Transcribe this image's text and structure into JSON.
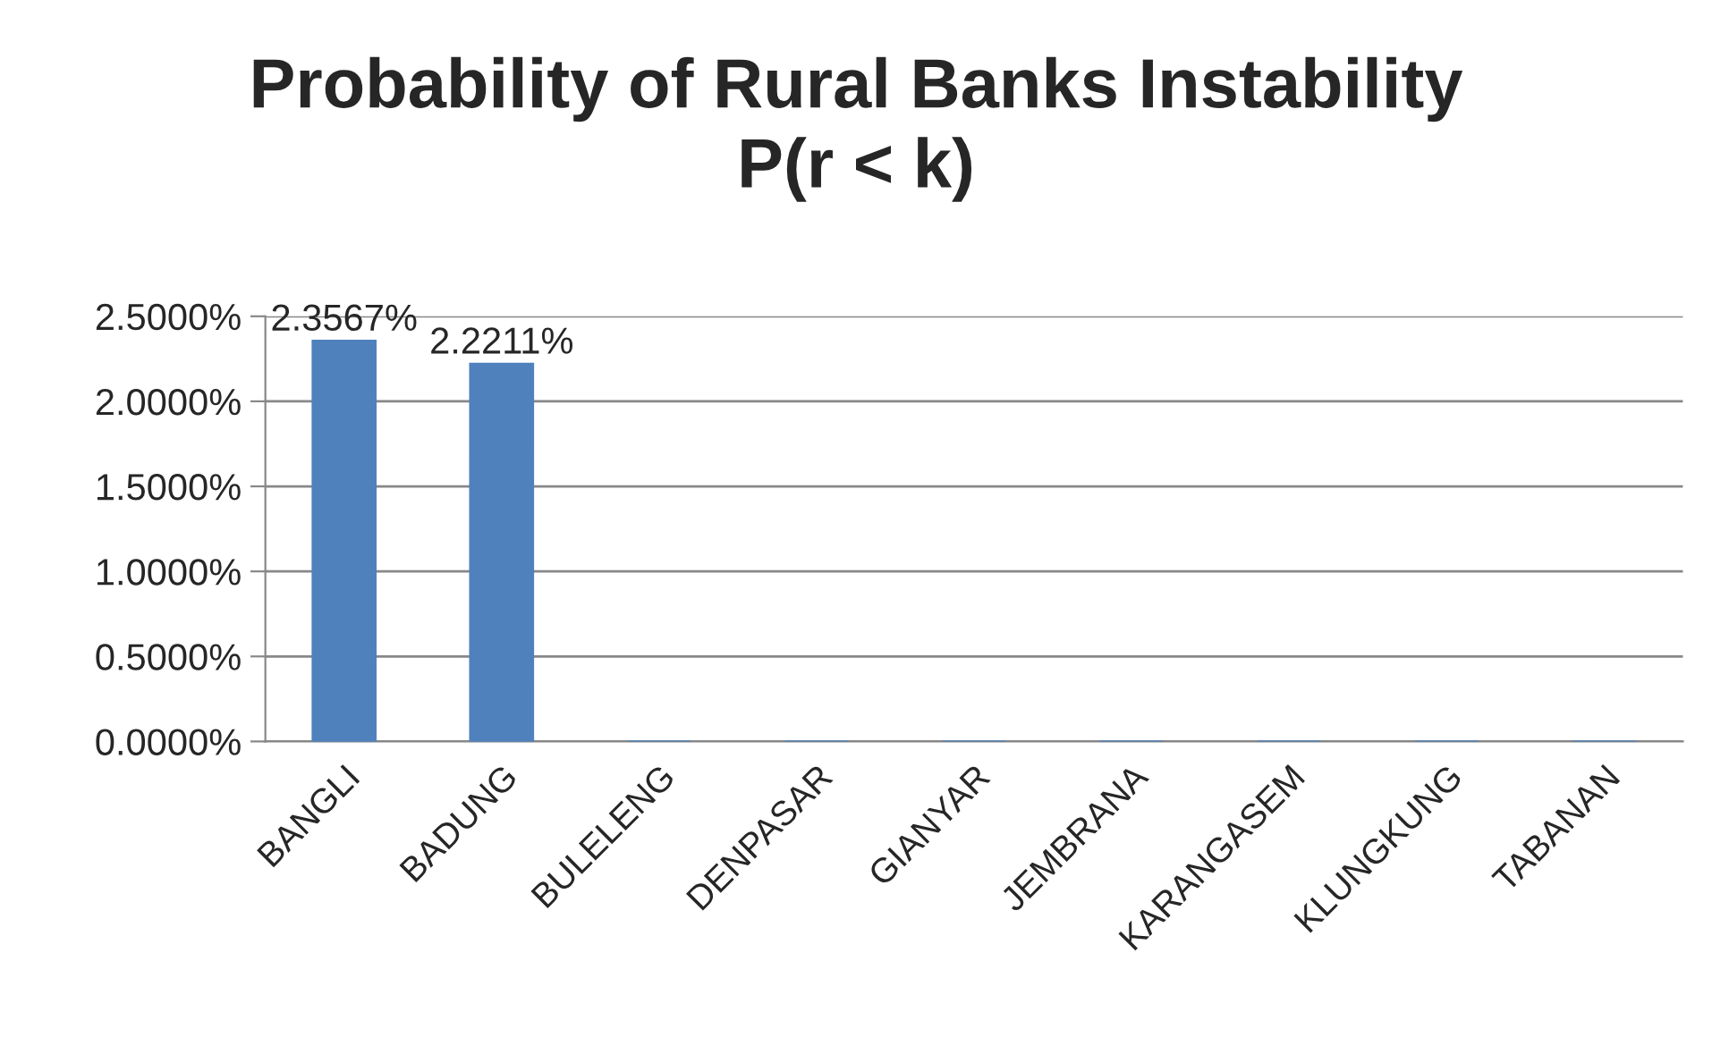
{
  "chart_data": {
    "type": "bar",
    "title": "Probability of Rural Banks Instability\nP(r < k)",
    "categories": [
      "BANGLI",
      "BADUNG",
      "BULELENG",
      "DENPASAR",
      "GIANYAR",
      "JEMBRANA",
      "KARANGASEM",
      "KLUNGKUNG",
      "TABANAN"
    ],
    "values": [
      2.3567,
      2.2211,
      0,
      0,
      0,
      0,
      0,
      0,
      0
    ],
    "value_labels": [
      "2.3567%",
      "2.2211%",
      null,
      null,
      null,
      null,
      null,
      null,
      null
    ],
    "color": "#4f81bd",
    "ylim": [
      0,
      2.5
    ],
    "yticks": [
      {
        "value": 0,
        "label": "0.0000%"
      },
      {
        "value": 0.5,
        "label": "0.5000%"
      },
      {
        "value": 1,
        "label": "1.0000%"
      },
      {
        "value": 1.5,
        "label": "1.5000%"
      },
      {
        "value": 2,
        "label": "2.0000%"
      },
      {
        "value": 2.5,
        "label": "2.5000%"
      }
    ],
    "grid": "y",
    "legend": false
  }
}
